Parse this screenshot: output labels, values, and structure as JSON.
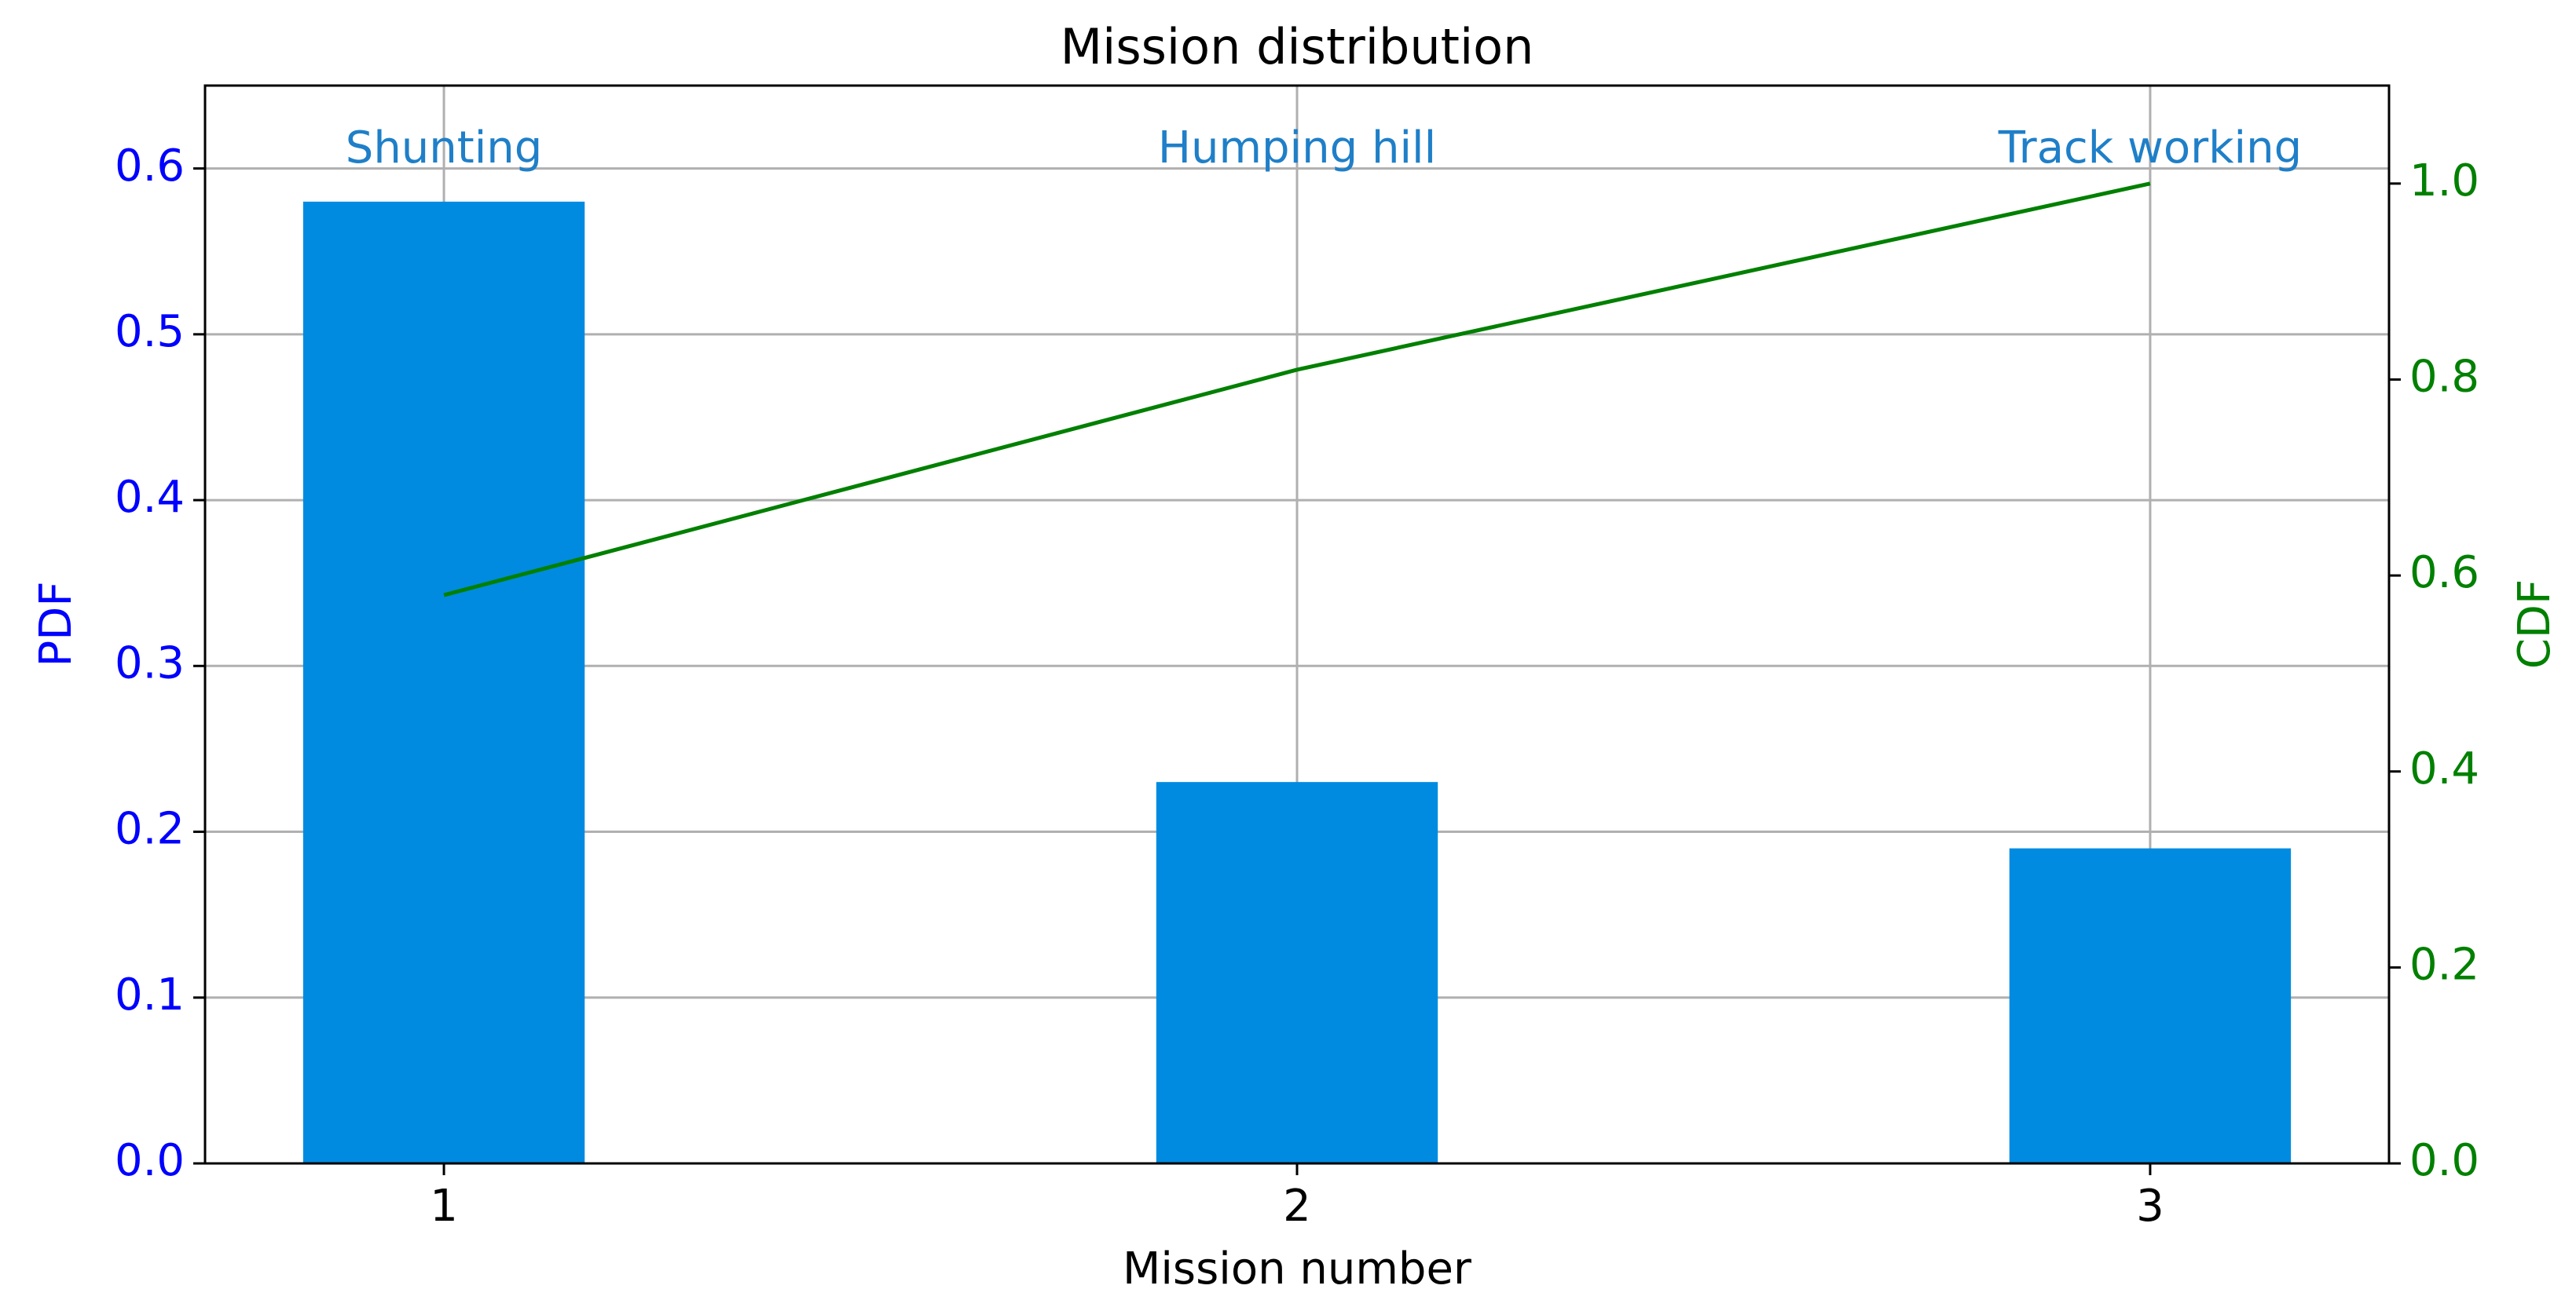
{
  "chart_data": {
    "type": "bar",
    "title": "Mission distribution",
    "xlabel": "Mission number",
    "ylabel": "PDF",
    "y2label": "CDF",
    "x": [
      1,
      2,
      3
    ],
    "annotations": [
      "Shunting",
      "Humping hill",
      "Track working"
    ],
    "annotation_color": "#1f7fc8",
    "series": [
      {
        "type": "bar",
        "color": "#008be0",
        "values": [
          0.58,
          0.23,
          0.19
        ]
      },
      {
        "type": "line",
        "color": "#008000",
        "axis": "y2",
        "values": [
          0.58,
          0.81,
          1.0
        ]
      }
    ],
    "xlim": [
      0.72,
      3.28
    ],
    "xticks": [
      1,
      2,
      3
    ],
    "ylim": [
      0,
      0.65
    ],
    "yticks": [
      {
        "value": 0,
        "label": "0.0"
      },
      0.1,
      0.2,
      0.3,
      0.4,
      0.5,
      0.6
    ],
    "y2lim": [
      0,
      1.1
    ],
    "y2ticks": [
      {
        "value": 0,
        "label": "0.0"
      },
      0.2,
      0.4,
      0.6,
      0.8,
      {
        "value": 1,
        "label": "1.0"
      }
    ],
    "ycolor": "#0000ff",
    "y2color": "#008000",
    "grid": true
  }
}
